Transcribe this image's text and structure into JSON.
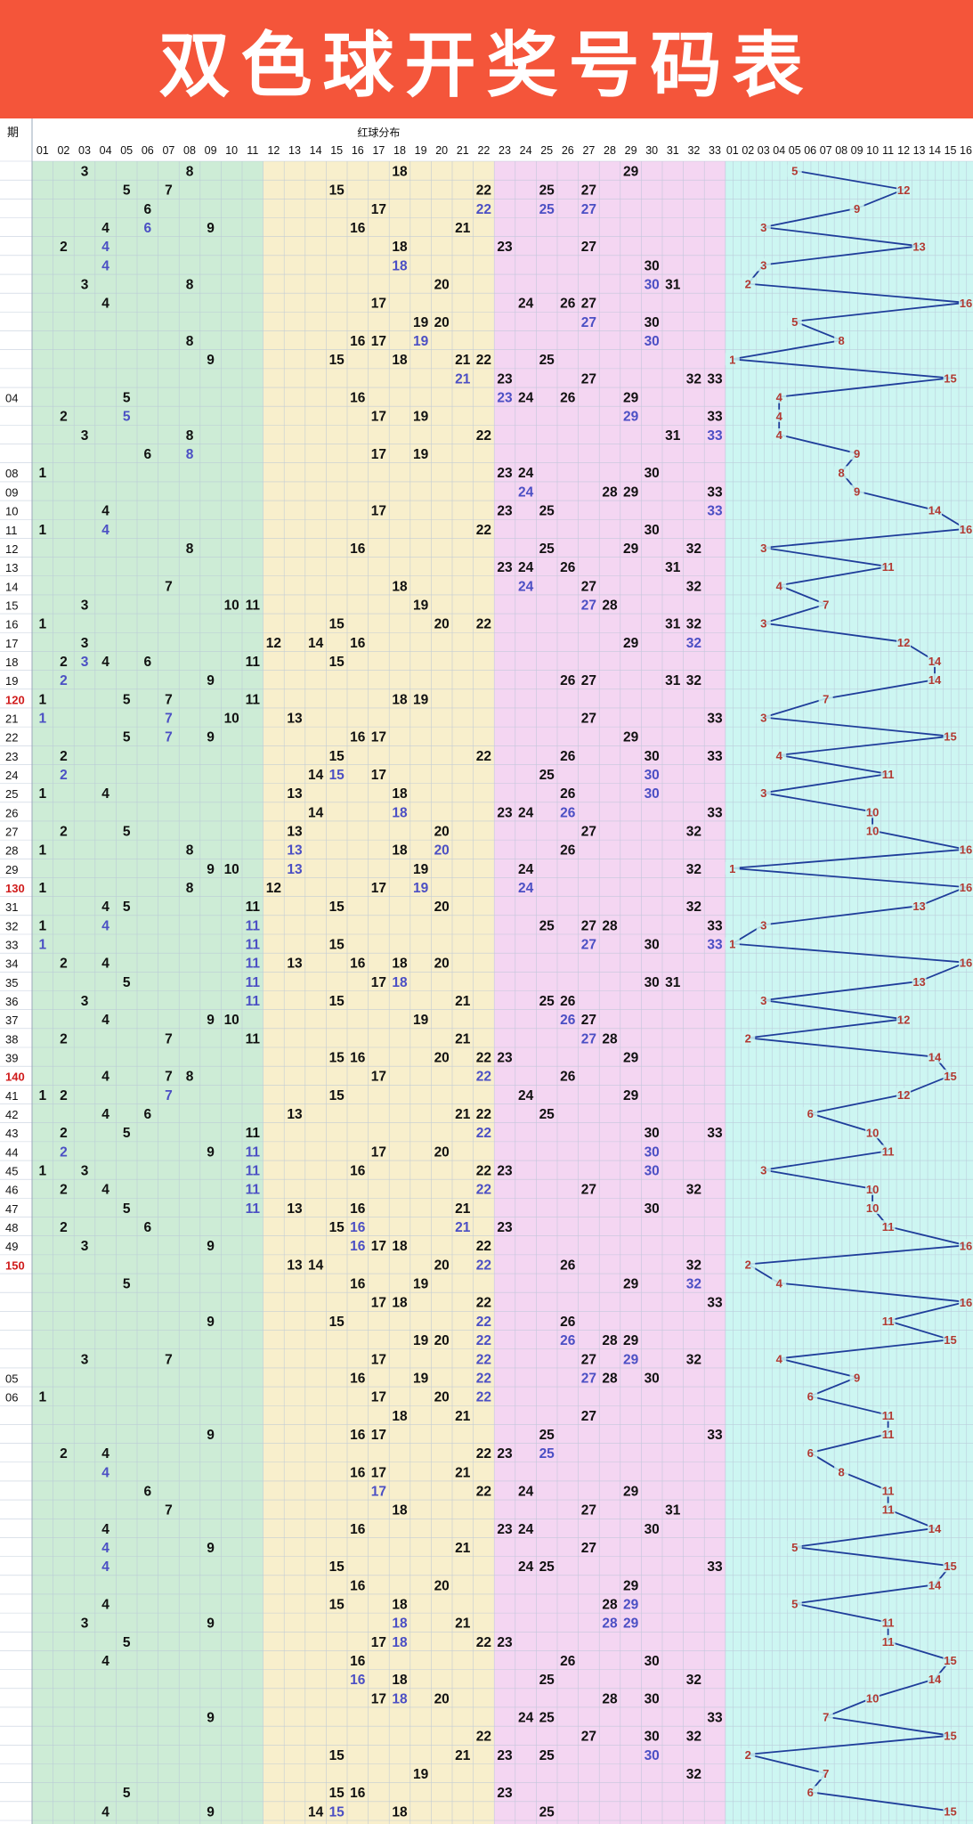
{
  "title": "双色球开奖号码表",
  "chart_data": {
    "type": "table",
    "title": "双色球开奖号码表",
    "header_period": "期",
    "header_red": "红球分布",
    "red_columns": [
      "01",
      "02",
      "03",
      "04",
      "05",
      "06",
      "07",
      "08",
      "09",
      "10",
      "11",
      "12",
      "13",
      "14",
      "15",
      "16",
      "17",
      "18",
      "19",
      "20",
      "21",
      "22",
      "23",
      "24",
      "25",
      "26",
      "27",
      "28",
      "29",
      "30",
      "31",
      "32",
      "33"
    ],
    "blue_columns": [
      "01",
      "02",
      "03",
      "04",
      "05",
      "06",
      "07",
      "08",
      "09",
      "10",
      "11",
      "12",
      "13",
      "14",
      "15",
      "16"
    ],
    "colors": {
      "banner": "#f4553a",
      "zone1": "#cdecd6",
      "zone2": "#f8efcc",
      "zone3": "#f4d6f2",
      "zone4": "#cdf6f2",
      "red_number": "#111111",
      "repeat_number": "#4b4fc4",
      "blue_label": "#b23a33",
      "blue_line": "#1f3d9a",
      "period_highlight": "#d01c1c"
    },
    "rows": [
      {
        "p": "",
        "r": [
          3,
          8,
          18,
          29
        ],
        "b": 5
      },
      {
        "p": "",
        "r": [
          5,
          7,
          15,
          22,
          25,
          27
        ],
        "b": 12
      },
      {
        "p": "",
        "r": [
          6,
          17,
          22,
          25,
          27
        ],
        "b": 9
      },
      {
        "p": "",
        "r": [
          4,
          6,
          9,
          16,
          21
        ],
        "b": 3
      },
      {
        "p": "",
        "r": [
          2,
          4,
          18,
          23,
          27
        ],
        "b": 13
      },
      {
        "p": "",
        "r": [
          4,
          18,
          30
        ],
        "b": 3
      },
      {
        "p": "",
        "r": [
          3,
          8,
          20,
          30,
          31
        ],
        "b": 2
      },
      {
        "p": "",
        "r": [
          4,
          17,
          24,
          26,
          27
        ],
        "b": 16
      },
      {
        "p": "",
        "r": [
          19,
          20,
          27,
          30
        ],
        "b": 5
      },
      {
        "p": "",
        "r": [
          8,
          16,
          17,
          19,
          30
        ],
        "b": 8
      },
      {
        "p": "",
        "r": [
          9,
          15,
          18,
          21,
          22,
          25
        ],
        "b": 1
      },
      {
        "p": "",
        "r": [
          21,
          23,
          27,
          32,
          33
        ],
        "b": 15
      },
      {
        "p": "04",
        "r": [
          5,
          16,
          23,
          24,
          26,
          29
        ],
        "b": 4
      },
      {
        "p": "",
        "r": [
          2,
          5,
          17,
          19,
          29,
          33
        ],
        "b": 4
      },
      {
        "p": "",
        "r": [
          3,
          8,
          22,
          31,
          33
        ],
        "b": 4
      },
      {
        "p": "",
        "r": [
          6,
          8,
          17,
          19
        ],
        "b": 9
      },
      {
        "p": "08",
        "r": [
          1,
          23,
          24,
          30
        ],
        "b": 8
      },
      {
        "p": "09",
        "r": [
          24,
          28,
          29,
          33
        ],
        "b": 9
      },
      {
        "p": "10",
        "r": [
          4,
          17,
          23,
          25,
          33
        ],
        "b": 14
      },
      {
        "p": "11",
        "r": [
          1,
          4,
          22,
          30
        ],
        "b": 16
      },
      {
        "p": "12",
        "r": [
          8,
          16,
          25,
          29,
          32
        ],
        "b": 3
      },
      {
        "p": "13",
        "r": [
          23,
          24,
          26,
          31
        ],
        "b": 11
      },
      {
        "p": "14",
        "r": [
          7,
          18,
          24,
          27,
          32
        ],
        "b": 4
      },
      {
        "p": "15",
        "r": [
          3,
          10,
          11,
          19,
          27,
          28
        ],
        "b": 7
      },
      {
        "p": "16",
        "r": [
          1,
          15,
          20,
          22,
          31,
          32
        ],
        "b": 3
      },
      {
        "p": "17",
        "r": [
          3,
          12,
          14,
          16,
          29,
          32
        ],
        "b": 12
      },
      {
        "p": "18",
        "r": [
          2,
          3,
          4,
          6,
          11,
          15
        ],
        "b": 14
      },
      {
        "p": "19",
        "r": [
          2,
          9,
          26,
          27,
          31,
          32
        ],
        "b": 14
      },
      {
        "p": "120",
        "r": [
          1,
          5,
          7,
          11,
          18,
          19
        ],
        "b": 7
      },
      {
        "p": "21",
        "r": [
          1,
          7,
          10,
          13,
          27,
          33
        ],
        "b": 3
      },
      {
        "p": "22",
        "r": [
          5,
          7,
          9,
          16,
          17,
          29
        ],
        "b": 15
      },
      {
        "p": "23",
        "r": [
          2,
          15,
          22,
          26,
          30,
          33
        ],
        "b": 4
      },
      {
        "p": "24",
        "r": [
          2,
          14,
          15,
          17,
          25,
          30
        ],
        "b": 11
      },
      {
        "p": "25",
        "r": [
          1,
          4,
          13,
          18,
          26,
          30
        ],
        "b": 3
      },
      {
        "p": "26",
        "r": [
          14,
          18,
          23,
          24,
          26,
          33
        ],
        "b": 10
      },
      {
        "p": "27",
        "r": [
          2,
          5,
          13,
          20,
          27,
          32
        ],
        "b": 10
      },
      {
        "p": "28",
        "r": [
          1,
          8,
          13,
          18,
          20,
          26
        ],
        "b": 16
      },
      {
        "p": "29",
        "r": [
          9,
          10,
          13,
          19,
          24,
          32
        ],
        "b": 1
      },
      {
        "p": "130",
        "r": [
          1,
          8,
          12,
          17,
          19,
          24
        ],
        "b": 16
      },
      {
        "p": "31",
        "r": [
          4,
          5,
          11,
          15,
          20,
          32
        ],
        "b": 13
      },
      {
        "p": "32",
        "r": [
          1,
          4,
          11,
          25,
          27,
          28,
          33
        ],
        "b": 3
      },
      {
        "p": "33",
        "r": [
          1,
          11,
          15,
          27,
          30,
          33
        ],
        "b": 1
      },
      {
        "p": "34",
        "r": [
          2,
          4,
          11,
          13,
          16,
          18,
          20
        ],
        "b": 16
      },
      {
        "p": "35",
        "r": [
          5,
          11,
          17,
          18,
          30,
          31
        ],
        "b": 13
      },
      {
        "p": "36",
        "r": [
          3,
          11,
          15,
          21,
          25,
          26
        ],
        "b": 3
      },
      {
        "p": "37",
        "r": [
          4,
          9,
          10,
          19,
          26,
          27
        ],
        "b": 12
      },
      {
        "p": "38",
        "r": [
          2,
          7,
          11,
          21,
          27,
          28
        ],
        "b": 2
      },
      {
        "p": "39",
        "r": [
          15,
          16,
          20,
          22,
          23,
          29
        ],
        "b": 14
      },
      {
        "p": "140",
        "r": [
          4,
          7,
          8,
          17,
          22,
          26
        ],
        "b": 15
      },
      {
        "p": "41",
        "r": [
          1,
          2,
          7,
          15,
          24,
          29
        ],
        "b": 12
      },
      {
        "p": "42",
        "r": [
          4,
          6,
          13,
          21,
          22,
          25
        ],
        "b": 6
      },
      {
        "p": "43",
        "r": [
          2,
          5,
          11,
          22,
          30,
          33
        ],
        "b": 10
      },
      {
        "p": "44",
        "r": [
          2,
          9,
          11,
          17,
          20,
          30
        ],
        "b": 11
      },
      {
        "p": "45",
        "r": [
          1,
          3,
          11,
          16,
          22,
          23,
          30
        ],
        "b": 3
      },
      {
        "p": "46",
        "r": [
          2,
          4,
          11,
          22,
          27,
          32
        ],
        "b": 10
      },
      {
        "p": "47",
        "r": [
          5,
          11,
          13,
          16,
          21,
          30
        ],
        "b": 10
      },
      {
        "p": "48",
        "r": [
          2,
          6,
          15,
          16,
          21,
          23
        ],
        "b": 11
      },
      {
        "p": "49",
        "r": [
          3,
          9,
          16,
          17,
          18,
          22
        ],
        "b": 16
      },
      {
        "p": "150",
        "r": [
          13,
          14,
          20,
          22,
          26,
          32
        ],
        "b": 2
      },
      {
        "p": "",
        "r": [
          5,
          16,
          19,
          29,
          32
        ],
        "b": 4
      },
      {
        "p": "",
        "r": [
          17,
          18,
          22,
          33
        ],
        "b": 16
      },
      {
        "p": "",
        "r": [
          9,
          15,
          22,
          26
        ],
        "b": 11
      },
      {
        "p": "",
        "r": [
          19,
          20,
          22,
          26,
          28,
          29
        ],
        "b": 15
      },
      {
        "p": "",
        "r": [
          3,
          7,
          17,
          22,
          27,
          29,
          32
        ],
        "b": 4
      },
      {
        "p": "05",
        "r": [
          16,
          19,
          22,
          27,
          28,
          30
        ],
        "b": 9
      },
      {
        "p": "06",
        "r": [
          1,
          17,
          20,
          22
        ],
        "b": 6
      },
      {
        "p": "",
        "r": [
          18,
          21,
          27
        ],
        "b": 11
      },
      {
        "p": "",
        "r": [
          9,
          16,
          17,
          25,
          33
        ],
        "b": 11
      },
      {
        "p": "",
        "r": [
          2,
          4,
          22,
          23,
          25
        ],
        "b": 6
      },
      {
        "p": "",
        "r": [
          4,
          16,
          17,
          21
        ],
        "b": 8
      },
      {
        "p": "",
        "r": [
          6,
          17,
          22,
          24,
          29
        ],
        "b": 11
      },
      {
        "p": "",
        "r": [
          7,
          18,
          27,
          31
        ],
        "b": 11
      },
      {
        "p": "",
        "r": [
          4,
          16,
          23,
          24,
          30
        ],
        "b": 14
      },
      {
        "p": "",
        "r": [
          4,
          9,
          21,
          27
        ],
        "b": 5
      },
      {
        "p": "",
        "r": [
          4,
          15,
          24,
          25,
          33
        ],
        "b": 15
      },
      {
        "p": "",
        "r": [
          16,
          20,
          29
        ],
        "b": 14
      },
      {
        "p": "",
        "r": [
          4,
          15,
          18,
          28,
          29
        ],
        "b": 5
      },
      {
        "p": "",
        "r": [
          3,
          9,
          18,
          21,
          28,
          29
        ],
        "b": 11
      },
      {
        "p": "",
        "r": [
          5,
          17,
          18,
          22,
          23
        ],
        "b": 11
      },
      {
        "p": "",
        "r": [
          4,
          16,
          26,
          30
        ],
        "b": 15
      },
      {
        "p": "",
        "r": [
          16,
          18,
          25,
          32
        ],
        "b": 14
      },
      {
        "p": "",
        "r": [
          17,
          18,
          20,
          28,
          30
        ],
        "b": 10
      },
      {
        "p": "",
        "r": [
          9,
          24,
          25,
          33
        ],
        "b": 7
      },
      {
        "p": "",
        "r": [
          22,
          27,
          30,
          32
        ],
        "b": 15
      },
      {
        "p": "",
        "r": [
          15,
          21,
          23,
          25,
          30
        ],
        "b": 2
      },
      {
        "p": "",
        "r": [
          19,
          32
        ],
        "b": 7
      },
      {
        "p": "",
        "r": [
          5,
          15,
          16,
          23
        ],
        "b": 6
      },
      {
        "p": "",
        "r": [
          4,
          9,
          14,
          15,
          18,
          25
        ],
        "b": 15
      }
    ]
  }
}
